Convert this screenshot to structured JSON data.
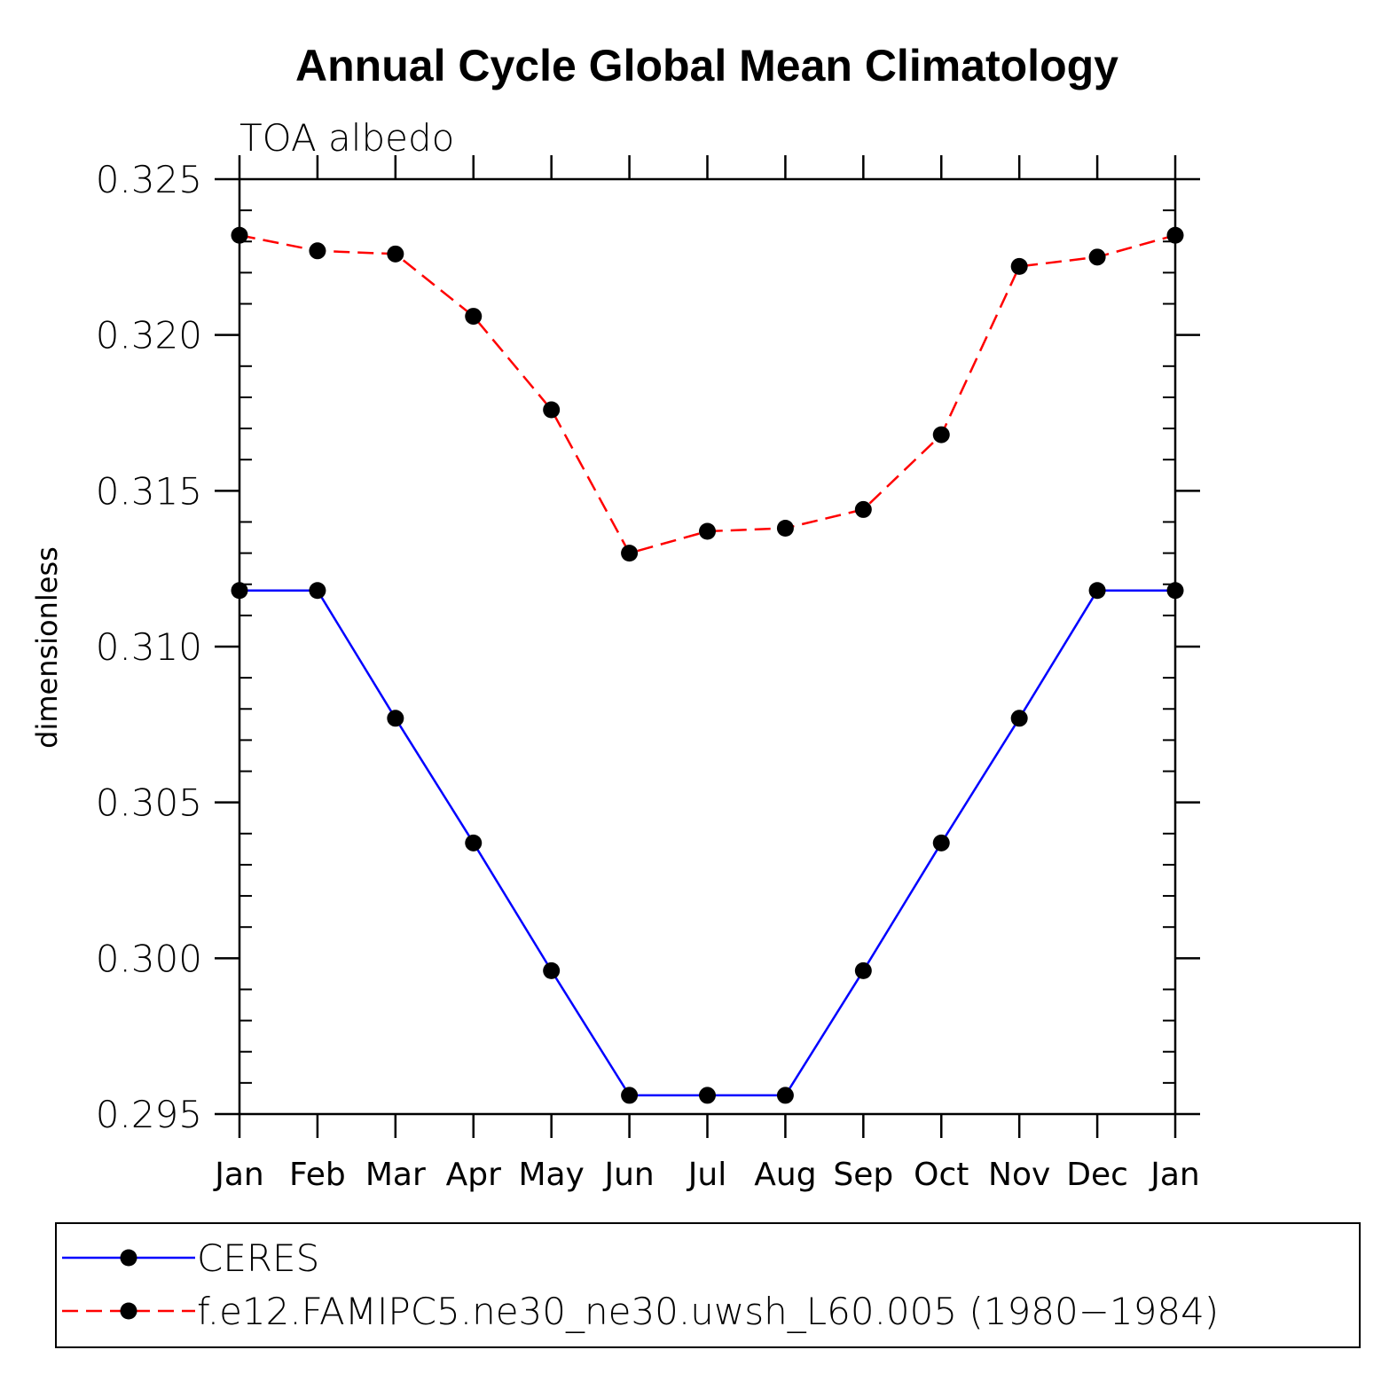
{
  "chart_data": {
    "type": "line",
    "title": "Annual Cycle Global Mean Climatology",
    "subtitle": "TOA albedo",
    "ylabel": "dimensionless",
    "xlabel": "",
    "categories": [
      "Jan",
      "Feb",
      "Mar",
      "Apr",
      "May",
      "Jun",
      "Jul",
      "Aug",
      "Sep",
      "Oct",
      "Nov",
      "Dec",
      "Jan"
    ],
    "ylim": [
      0.295,
      0.325
    ],
    "yticks": [
      0.295,
      0.3,
      0.305,
      0.31,
      0.315,
      0.32,
      0.325
    ],
    "ytick_labels": [
      "0.295",
      "0.300",
      "0.305",
      "0.310",
      "0.315",
      "0.320",
      "0.325"
    ],
    "grid": false,
    "legend_position": "bottom",
    "series": [
      {
        "name": "CERES",
        "color": "#0000ff",
        "dash": "solid",
        "marker": "filled-circle",
        "values": [
          0.3118,
          0.3118,
          0.3077,
          0.3037,
          0.2996,
          0.2956,
          0.2956,
          0.2956,
          0.2996,
          0.3037,
          0.3077,
          0.3118,
          0.3118
        ]
      },
      {
        "name": "f.e12.FAMIPC5.ne30_ne30.uwsh_L60.005 (1980−1984)",
        "color": "#ff0000",
        "dash": "dashed",
        "marker": "filled-circle",
        "values": [
          0.3232,
          0.3227,
          0.3226,
          0.3206,
          0.3176,
          0.313,
          0.3137,
          0.3138,
          0.3144,
          0.3168,
          0.3222,
          0.3225,
          0.3232
        ]
      }
    ]
  }
}
